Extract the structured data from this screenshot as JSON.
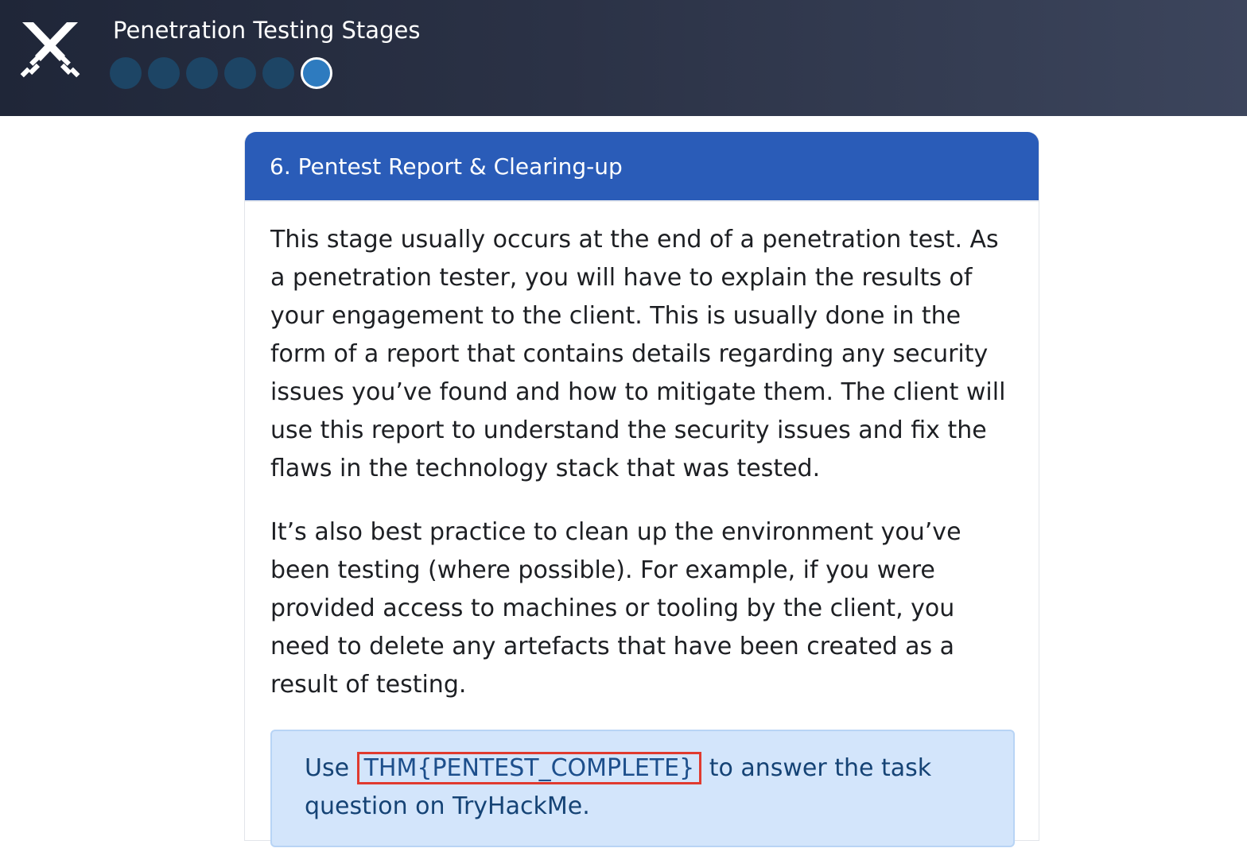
{
  "header": {
    "title": "Penetration Testing Stages",
    "logo_icon": "crossed-swords-icon",
    "steps": [
      {
        "state": "completed"
      },
      {
        "state": "completed"
      },
      {
        "state": "completed"
      },
      {
        "state": "completed"
      },
      {
        "state": "completed"
      },
      {
        "state": "current"
      }
    ],
    "colors": {
      "step_completed": "#1d4565",
      "step_current": "#2e7bbf"
    }
  },
  "card": {
    "title": "6. Pentest Report & Clearing-up",
    "paragraphs": [
      "This stage usually occurs at the end of a penetration test. As a penetration tester, you will have to explain the results of your engagement to the client. This is usually done in the form of a report that contains details regarding any security issues you’ve found and how to mitigate them. The client will use this report to understand the security issues and fix the flaws in the technology stack that was tested.",
      "It’s also best practice to clean up the environment you’ve been testing (where possible). For example, if you were provided access to machines or tooling by the client, you need to delete any artefacts that have been created as a result of testing."
    ],
    "callout": {
      "prefix": "Use",
      "flag": "THM{PENTEST_COMPLETE}",
      "suffix": "to answer the task question on TryHackMe."
    },
    "colors": {
      "header_bg": "#2a5cb8",
      "callout_bg": "#d3e5fb",
      "highlight_border": "#e03a2f"
    }
  }
}
